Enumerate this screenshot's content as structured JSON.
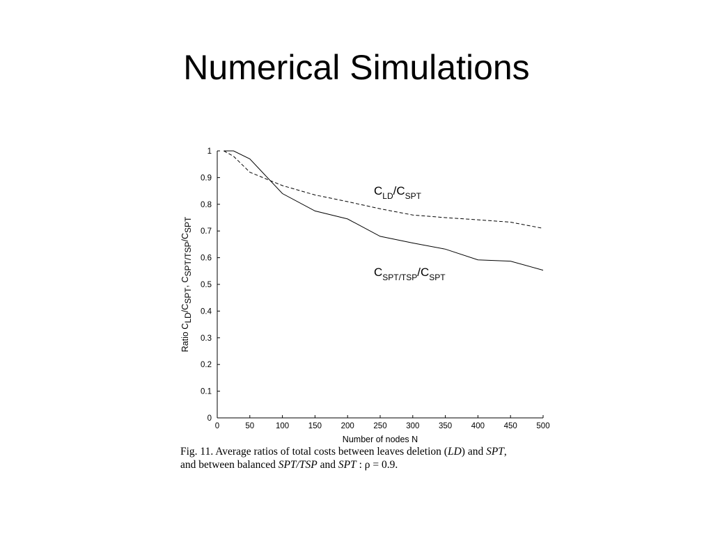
{
  "slide": {
    "title": "Numerical Simulations"
  },
  "chart_data": {
    "type": "line",
    "xlabel": "Number of nodes N",
    "ylabel": {
      "prefix": "Ratio C",
      "sub1": "LD",
      "mid1": "/C",
      "sub2": "SPT",
      "mid2": ", C",
      "sub3": "SPT/TSP",
      "mid3": "/C",
      "sub4": "SPT"
    },
    "xlim": [
      0,
      500
    ],
    "ylim": [
      0,
      1
    ],
    "xticks": [
      "0",
      "50",
      "100",
      "150",
      "200",
      "250",
      "300",
      "350",
      "400",
      "450",
      "500"
    ],
    "yticks": [
      "0",
      "0.1",
      "0.2",
      "0.3",
      "0.4",
      "0.5",
      "0.6",
      "0.7",
      "0.8",
      "0.9",
      "1"
    ],
    "grid": false,
    "series": [
      {
        "name": "C_LD/C_SPT",
        "label_parts": [
          "C",
          "LD",
          "/C",
          "SPT"
        ],
        "line_style": "dashed",
        "x": [
          10,
          25,
          50,
          100,
          150,
          200,
          250,
          300,
          350,
          400,
          450,
          500
        ],
        "y": [
          1.0,
          0.98,
          0.92,
          0.87,
          0.835,
          0.81,
          0.783,
          0.76,
          0.75,
          0.742,
          0.733,
          0.71
        ]
      },
      {
        "name": "C_SPT/TSP/C_SPT",
        "label_parts": [
          "C",
          "SPT/TSP",
          "/C",
          "SPT"
        ],
        "line_style": "solid",
        "x": [
          10,
          25,
          50,
          100,
          150,
          200,
          250,
          300,
          350,
          400,
          450,
          500
        ],
        "y": [
          1.0,
          1.0,
          0.97,
          0.84,
          0.775,
          0.745,
          0.68,
          0.655,
          0.632,
          0.592,
          0.587,
          0.553
        ]
      }
    ]
  },
  "caption": {
    "line1_a": "Fig. 11.    Average ratios of total costs between leaves deletion (",
    "line1_b": "LD",
    "line1_c": ") and ",
    "line1_d": "SPT",
    "line1_e": ",",
    "line2_a": "and between balanced ",
    "line2_b": "SPT/TSP",
    "line2_c": " and ",
    "line2_d": "SPT",
    "line2_e": " :  ρ = 0.9."
  }
}
